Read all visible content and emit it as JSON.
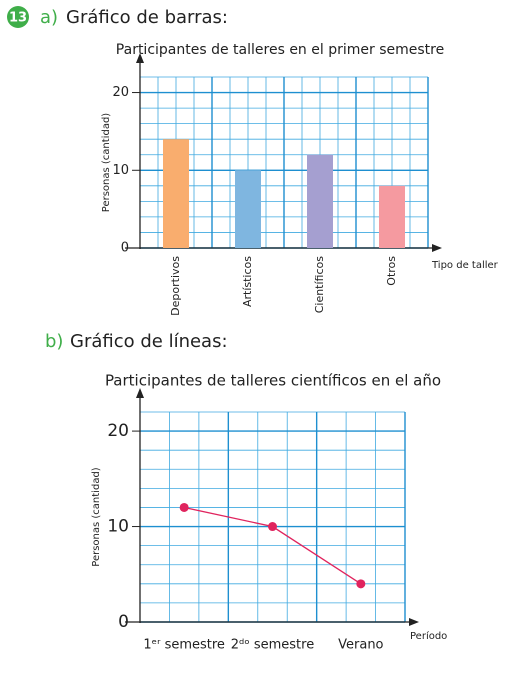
{
  "exercise": "13",
  "parts": [
    {
      "label": "a)",
      "heading": "Gráfico de barras:"
    },
    {
      "label": "b)",
      "heading": "Gráfico de líneas:"
    }
  ],
  "chart_data": [
    {
      "type": "bar",
      "title": "Participantes de talleres en el primer semestre",
      "categories": [
        "Deportivos",
        "Artísticos",
        "Científicos",
        "Otros"
      ],
      "values": [
        14,
        10,
        12,
        8
      ],
      "colors": [
        "#f9ad6e",
        "#7fb6e0",
        "#a59fd0",
        "#f59aa0"
      ],
      "xlabel": "Tipo de taller",
      "ylabel": "Personas (cantidad)",
      "ylim": [
        0,
        22
      ],
      "yticks": [
        0,
        10,
        20
      ],
      "minor_grid_step": 2,
      "grid": true
    },
    {
      "type": "line",
      "title": "Participantes de talleres científicos en el año",
      "categories": [
        "1ᵉʳ semestre",
        "2ᵈᵒ semestre",
        "Verano"
      ],
      "values": [
        12,
        10,
        4
      ],
      "color": "#e0245e",
      "xlabel": "Período",
      "ylabel": "Personas (cantidad)",
      "ylim": [
        0,
        22
      ],
      "yticks": [
        0,
        10,
        20
      ],
      "minor_grid_step": 2,
      "grid": true
    }
  ]
}
